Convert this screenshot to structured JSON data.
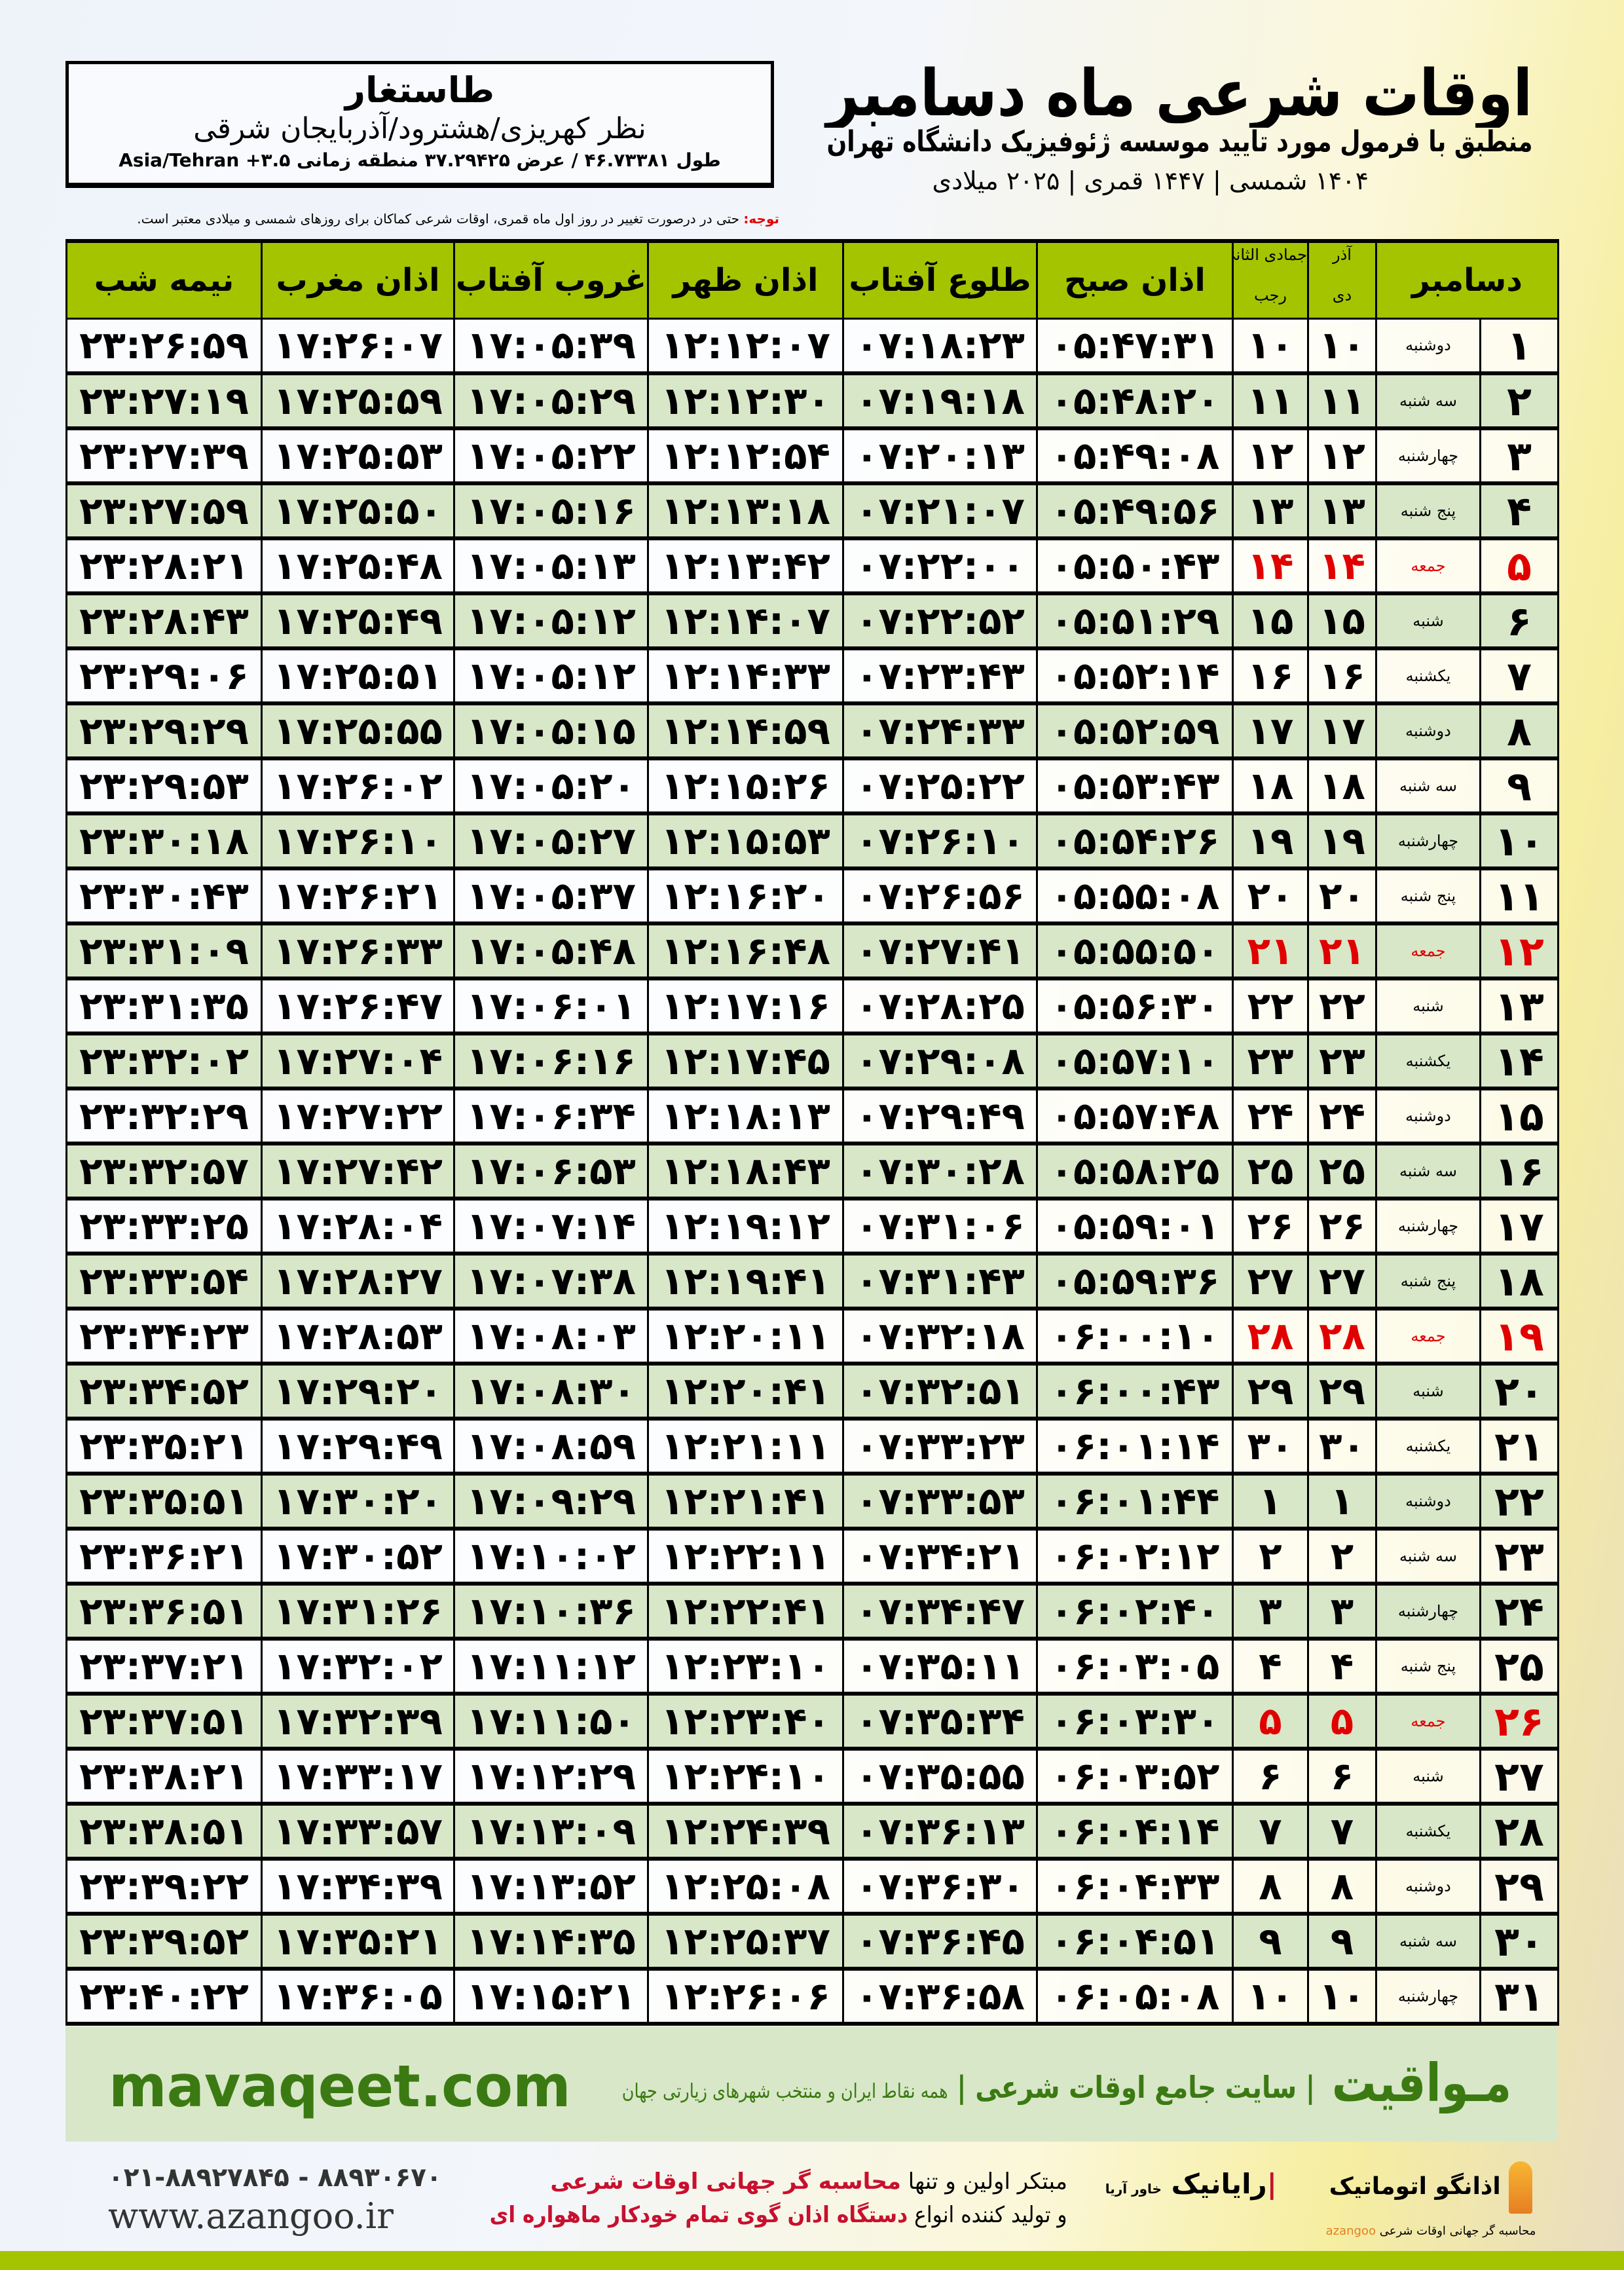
{
  "location": {
    "city": "طاستغار",
    "region": "نظر کهریزی/هشترود/آذربایجان شرقی",
    "coords": "طول ۴۶.۷۳۳۸۱ / عرض ۳۷.۲۹۴۲۵ منطقه زمانی ۳.۵+ Asia/Tehran"
  },
  "header": {
    "title": "اوقات شرعی ماه دسامبر",
    "subtitle": "منطبق با فرمول مورد تایید موسسه ژئوفیزیک دانشگاه تهران",
    "years": "۱۴۰۴ شمسی | ۱۴۴۷ قمری | ۲۰۲۵ میلادی"
  },
  "note": {
    "label": "توجه:",
    "text": " حتی در درصورت تغییر در روز اول ماه قمری، اوقات شرعی کماکان برای روزهای شمسی و میلادی معتبر است."
  },
  "columns": {
    "month": "دسامبر",
    "solar_top": "آذر",
    "solar_bottom": "دی",
    "lunar_top": "جمادی الثانی",
    "lunar_bottom": "رجب",
    "fajr": "اذان صبح",
    "sunrise": "طلوع آفتاب",
    "dhuhr": "اذان ظهر",
    "sunset": "غروب آفتاب",
    "maghrib": "اذان مغرب",
    "midnight": "نیمه شب"
  },
  "colors": {
    "header_green": "#a4c400",
    "row_green": "#d8e7c8",
    "friday_red": "#e00000",
    "brand_green": "#3b7a12"
  },
  "rows": [
    [
      "۱",
      "دوشنبه",
      "۱۰",
      "۱۰",
      "۰۵:۴۷:۳۱",
      "۰۷:۱۸:۲۳",
      "۱۲:۱۲:۰۷",
      "۱۷:۰۵:۳۹",
      "۱۷:۲۶:۰۷",
      "۲۳:۲۶:۵۹"
    ],
    [
      "۲",
      "سه شنبه",
      "۱۱",
      "۱۱",
      "۰۵:۴۸:۲۰",
      "۰۷:۱۹:۱۸",
      "۱۲:۱۲:۳۰",
      "۱۷:۰۵:۲۹",
      "۱۷:۲۵:۵۹",
      "۲۳:۲۷:۱۹"
    ],
    [
      "۳",
      "چهارشنبه",
      "۱۲",
      "۱۲",
      "۰۵:۴۹:۰۸",
      "۰۷:۲۰:۱۳",
      "۱۲:۱۲:۵۴",
      "۱۷:۰۵:۲۲",
      "۱۷:۲۵:۵۳",
      "۲۳:۲۷:۳۹"
    ],
    [
      "۴",
      "پنج شنبه",
      "۱۳",
      "۱۳",
      "۰۵:۴۹:۵۶",
      "۰۷:۲۱:۰۷",
      "۱۲:۱۳:۱۸",
      "۱۷:۰۵:۱۶",
      "۱۷:۲۵:۵۰",
      "۲۳:۲۷:۵۹"
    ],
    [
      "۵",
      "جمعه",
      "۱۴",
      "۱۴",
      "۰۵:۵۰:۴۳",
      "۰۷:۲۲:۰۰",
      "۱۲:۱۳:۴۲",
      "۱۷:۰۵:۱۳",
      "۱۷:۲۵:۴۸",
      "۲۳:۲۸:۲۱"
    ],
    [
      "۶",
      "شنبه",
      "۱۵",
      "۱۵",
      "۰۵:۵۱:۲۹",
      "۰۷:۲۲:۵۲",
      "۱۲:۱۴:۰۷",
      "۱۷:۰۵:۱۲",
      "۱۷:۲۵:۴۹",
      "۲۳:۲۸:۴۳"
    ],
    [
      "۷",
      "یکشنبه",
      "۱۶",
      "۱۶",
      "۰۵:۵۲:۱۴",
      "۰۷:۲۳:۴۳",
      "۱۲:۱۴:۳۳",
      "۱۷:۰۵:۱۲",
      "۱۷:۲۵:۵۱",
      "۲۳:۲۹:۰۶"
    ],
    [
      "۸",
      "دوشنبه",
      "۱۷",
      "۱۷",
      "۰۵:۵۲:۵۹",
      "۰۷:۲۴:۳۳",
      "۱۲:۱۴:۵۹",
      "۱۷:۰۵:۱۵",
      "۱۷:۲۵:۵۵",
      "۲۳:۲۹:۲۹"
    ],
    [
      "۹",
      "سه شنبه",
      "۱۸",
      "۱۸",
      "۰۵:۵۳:۴۳",
      "۰۷:۲۵:۲۲",
      "۱۲:۱۵:۲۶",
      "۱۷:۰۵:۲۰",
      "۱۷:۲۶:۰۲",
      "۲۳:۲۹:۵۳"
    ],
    [
      "۱۰",
      "چهارشنبه",
      "۱۹",
      "۱۹",
      "۰۵:۵۴:۲۶",
      "۰۷:۲۶:۱۰",
      "۱۲:۱۵:۵۳",
      "۱۷:۰۵:۲۷",
      "۱۷:۲۶:۱۰",
      "۲۳:۳۰:۱۸"
    ],
    [
      "۱۱",
      "پنج شنبه",
      "۲۰",
      "۲۰",
      "۰۵:۵۵:۰۸",
      "۰۷:۲۶:۵۶",
      "۱۲:۱۶:۲۰",
      "۱۷:۰۵:۳۷",
      "۱۷:۲۶:۲۱",
      "۲۳:۳۰:۴۳"
    ],
    [
      "۱۲",
      "جمعه",
      "۲۱",
      "۲۱",
      "۰۵:۵۵:۵۰",
      "۰۷:۲۷:۴۱",
      "۱۲:۱۶:۴۸",
      "۱۷:۰۵:۴۸",
      "۱۷:۲۶:۳۳",
      "۲۳:۳۱:۰۹"
    ],
    [
      "۱۳",
      "شنبه",
      "۲۲",
      "۲۲",
      "۰۵:۵۶:۳۰",
      "۰۷:۲۸:۲۵",
      "۱۲:۱۷:۱۶",
      "۱۷:۰۶:۰۱",
      "۱۷:۲۶:۴۷",
      "۲۳:۳۱:۳۵"
    ],
    [
      "۱۴",
      "یکشنبه",
      "۲۳",
      "۲۳",
      "۰۵:۵۷:۱۰",
      "۰۷:۲۹:۰۸",
      "۱۲:۱۷:۴۵",
      "۱۷:۰۶:۱۶",
      "۱۷:۲۷:۰۴",
      "۲۳:۳۲:۰۲"
    ],
    [
      "۱۵",
      "دوشنبه",
      "۲۴",
      "۲۴",
      "۰۵:۵۷:۴۸",
      "۰۷:۲۹:۴۹",
      "۱۲:۱۸:۱۳",
      "۱۷:۰۶:۳۴",
      "۱۷:۲۷:۲۲",
      "۲۳:۳۲:۲۹"
    ],
    [
      "۱۶",
      "سه شنبه",
      "۲۵",
      "۲۵",
      "۰۵:۵۸:۲۵",
      "۰۷:۳۰:۲۸",
      "۱۲:۱۸:۴۳",
      "۱۷:۰۶:۵۳",
      "۱۷:۲۷:۴۲",
      "۲۳:۳۲:۵۷"
    ],
    [
      "۱۷",
      "چهارشنبه",
      "۲۶",
      "۲۶",
      "۰۵:۵۹:۰۱",
      "۰۷:۳۱:۰۶",
      "۱۲:۱۹:۱۲",
      "۱۷:۰۷:۱۴",
      "۱۷:۲۸:۰۴",
      "۲۳:۳۳:۲۵"
    ],
    [
      "۱۸",
      "پنج شنبه",
      "۲۷",
      "۲۷",
      "۰۵:۵۹:۳۶",
      "۰۷:۳۱:۴۳",
      "۱۲:۱۹:۴۱",
      "۱۷:۰۷:۳۸",
      "۱۷:۲۸:۲۷",
      "۲۳:۳۳:۵۴"
    ],
    [
      "۱۹",
      "جمعه",
      "۲۸",
      "۲۸",
      "۰۶:۰۰:۱۰",
      "۰۷:۳۲:۱۸",
      "۱۲:۲۰:۱۱",
      "۱۷:۰۸:۰۳",
      "۱۷:۲۸:۵۳",
      "۲۳:۳۴:۲۳"
    ],
    [
      "۲۰",
      "شنبه",
      "۲۹",
      "۲۹",
      "۰۶:۰۰:۴۳",
      "۰۷:۳۲:۵۱",
      "۱۲:۲۰:۴۱",
      "۱۷:۰۸:۳۰",
      "۱۷:۲۹:۲۰",
      "۲۳:۳۴:۵۲"
    ],
    [
      "۲۱",
      "یکشنبه",
      "۳۰",
      "۳۰",
      "۰۶:۰۱:۱۴",
      "۰۷:۳۳:۲۳",
      "۱۲:۲۱:۱۱",
      "۱۷:۰۸:۵۹",
      "۱۷:۲۹:۴۹",
      "۲۳:۳۵:۲۱"
    ],
    [
      "۲۲",
      "دوشنبه",
      "۱",
      "۱",
      "۰۶:۰۱:۴۴",
      "۰۷:۳۳:۵۳",
      "۱۲:۲۱:۴۱",
      "۱۷:۰۹:۲۹",
      "۱۷:۳۰:۲۰",
      "۲۳:۳۵:۵۱"
    ],
    [
      "۲۳",
      "سه شنبه",
      "۲",
      "۲",
      "۰۶:۰۲:۱۲",
      "۰۷:۳۴:۲۱",
      "۱۲:۲۲:۱۱",
      "۱۷:۱۰:۰۲",
      "۱۷:۳۰:۵۲",
      "۲۳:۳۶:۲۱"
    ],
    [
      "۲۴",
      "چهارشنبه",
      "۳",
      "۳",
      "۰۶:۰۲:۴۰",
      "۰۷:۳۴:۴۷",
      "۱۲:۲۲:۴۱",
      "۱۷:۱۰:۳۶",
      "۱۷:۳۱:۲۶",
      "۲۳:۳۶:۵۱"
    ],
    [
      "۲۵",
      "پنج شنبه",
      "۴",
      "۴",
      "۰۶:۰۳:۰۵",
      "۰۷:۳۵:۱۱",
      "۱۲:۲۳:۱۰",
      "۱۷:۱۱:۱۲",
      "۱۷:۳۲:۰۲",
      "۲۳:۳۷:۲۱"
    ],
    [
      "۲۶",
      "جمعه",
      "۵",
      "۵",
      "۰۶:۰۳:۳۰",
      "۰۷:۳۵:۳۴",
      "۱۲:۲۳:۴۰",
      "۱۷:۱۱:۵۰",
      "۱۷:۳۲:۳۹",
      "۲۳:۳۷:۵۱"
    ],
    [
      "۲۷",
      "شنبه",
      "۶",
      "۶",
      "۰۶:۰۳:۵۲",
      "۰۷:۳۵:۵۵",
      "۱۲:۲۴:۱۰",
      "۱۷:۱۲:۲۹",
      "۱۷:۳۳:۱۷",
      "۲۳:۳۸:۲۱"
    ],
    [
      "۲۸",
      "یکشنبه",
      "۷",
      "۷",
      "۰۶:۰۴:۱۴",
      "۰۷:۳۶:۱۳",
      "۱۲:۲۴:۳۹",
      "۱۷:۱۳:۰۹",
      "۱۷:۳۳:۵۷",
      "۲۳:۳۸:۵۱"
    ],
    [
      "۲۹",
      "دوشنبه",
      "۸",
      "۸",
      "۰۶:۰۴:۳۳",
      "۰۷:۳۶:۳۰",
      "۱۲:۲۵:۰۸",
      "۱۷:۱۳:۵۲",
      "۱۷:۳۴:۳۹",
      "۲۳:۳۹:۲۲"
    ],
    [
      "۳۰",
      "سه شنبه",
      "۹",
      "۹",
      "۰۶:۰۴:۵۱",
      "۰۷:۳۶:۴۵",
      "۱۲:۲۵:۳۷",
      "۱۷:۱۴:۳۵",
      "۱۷:۳۵:۲۱",
      "۲۳:۳۹:۵۲"
    ],
    [
      "۳۱",
      "چهارشنبه",
      "۱۰",
      "۱۰",
      "۰۶:۰۵:۰۸",
      "۰۷:۳۶:۵۸",
      "۱۲:۲۶:۰۶",
      "۱۷:۱۵:۲۱",
      "۱۷:۳۶:۰۵",
      "۲۳:۴۰:۲۲"
    ]
  ],
  "footer": {
    "brand": "مـواقیت",
    "slogan": "سایت جامع اوقات شرعی",
    "slogan_small": "همه نقاط ایران و منتخب شهرهای زیارتی جهان",
    "url": "mavaqeet.com"
  },
  "bottom": {
    "phone": "۰۲۱-۸۸۹۲۷۸۴۵ - ۸۸۹۳۰۶۷۰",
    "site": "www.azangoo.ir",
    "line1_a": "مبتکر اولین و تنها ",
    "line1_b": "محاسبه گر جهانی اوقات شرعی",
    "line2_a": "و تولید کننده انواع ",
    "line2_b": "دستگاه اذان گوی تمام خودکار ماهواره ای",
    "logo_rayanik": "رایانیک",
    "logo_rayanik_sub": "خاور آریا",
    "logo_azangoo": "اذانگو اتوماتیک",
    "logo_azangoo_sub": "محاسبه گر جهانی اوقات شرعی",
    "logo_azangoo_en": "azangoo"
  }
}
